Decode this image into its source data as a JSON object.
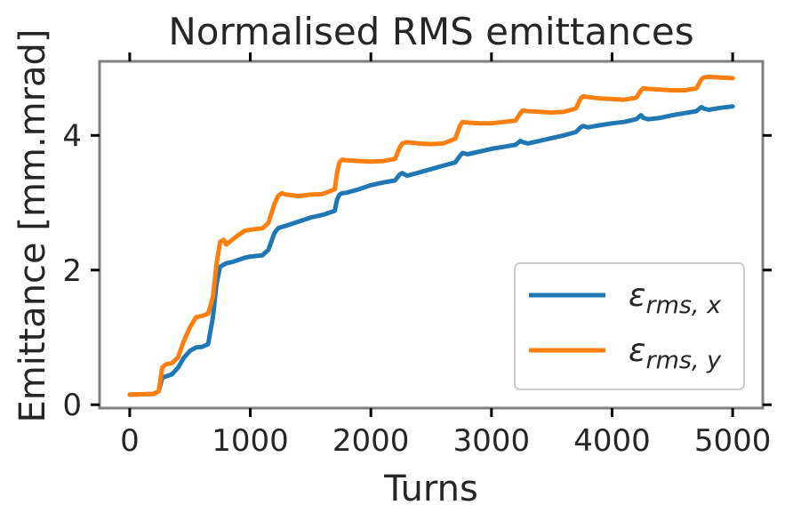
{
  "chart_data": {
    "type": "line",
    "title": "Normalised RMS emittances",
    "xlabel": "Turns",
    "ylabel": "Emittance [mm.mrad]",
    "xlim": [
      -250,
      5250
    ],
    "ylim": [
      -0.05,
      5.1
    ],
    "xticks": [
      0,
      1000,
      2000,
      3000,
      4000,
      5000
    ],
    "xtick_labels": [
      "0",
      "1000",
      "2000",
      "3000",
      "4000",
      "5000"
    ],
    "yticks": [
      0,
      2,
      4
    ],
    "ytick_labels": [
      "0",
      "2",
      "4"
    ],
    "grid": false,
    "legend_position": "lower-right",
    "series": [
      {
        "name": "rms, x",
        "legend_main": "ε",
        "legend_sub": "rms, x",
        "color": "#1f77b4",
        "x": [
          0,
          200,
          240,
          270,
          300,
          350,
          400,
          450,
          500,
          550,
          600,
          650,
          690,
          720,
          750,
          780,
          800,
          850,
          900,
          950,
          1000,
          1100,
          1150,
          1200,
          1230,
          1260,
          1300,
          1400,
          1500,
          1600,
          1700,
          1720,
          1740,
          1760,
          1800,
          1900,
          2000,
          2100,
          2200,
          2240,
          2260,
          2300,
          2400,
          2500,
          2600,
          2700,
          2740,
          2760,
          2800,
          2900,
          3000,
          3100,
          3200,
          3240,
          3260,
          3300,
          3400,
          3500,
          3600,
          3700,
          3740,
          3760,
          3800,
          3900,
          4000,
          4100,
          4200,
          4240,
          4260,
          4300,
          4400,
          4500,
          4600,
          4700,
          4740,
          4760,
          4800,
          4900,
          5000
        ],
        "y": [
          0.15,
          0.16,
          0.2,
          0.4,
          0.42,
          0.45,
          0.55,
          0.7,
          0.8,
          0.85,
          0.86,
          0.9,
          1.3,
          1.8,
          2.05,
          2.08,
          2.1,
          2.12,
          2.15,
          2.18,
          2.2,
          2.22,
          2.3,
          2.55,
          2.62,
          2.64,
          2.66,
          2.72,
          2.78,
          2.82,
          2.88,
          3.05,
          3.12,
          3.14,
          3.15,
          3.2,
          3.26,
          3.3,
          3.33,
          3.42,
          3.44,
          3.4,
          3.45,
          3.5,
          3.55,
          3.6,
          3.7,
          3.74,
          3.72,
          3.76,
          3.8,
          3.83,
          3.86,
          3.92,
          3.9,
          3.88,
          3.92,
          3.96,
          4.0,
          4.05,
          4.12,
          4.14,
          4.12,
          4.15,
          4.18,
          4.2,
          4.24,
          4.3,
          4.26,
          4.24,
          4.26,
          4.3,
          4.33,
          4.36,
          4.42,
          4.4,
          4.38,
          4.41,
          4.43
        ]
      },
      {
        "name": "rms, y",
        "legend_main": "ε",
        "legend_sub": "rms, y",
        "color": "#ff7f0e",
        "x": [
          0,
          200,
          240,
          270,
          300,
          350,
          400,
          450,
          500,
          550,
          600,
          650,
          690,
          720,
          750,
          780,
          800,
          850,
          900,
          950,
          1000,
          1100,
          1150,
          1200,
          1230,
          1260,
          1300,
          1400,
          1500,
          1600,
          1700,
          1720,
          1740,
          1760,
          1800,
          1900,
          2000,
          2100,
          2200,
          2240,
          2260,
          2300,
          2400,
          2500,
          2600,
          2700,
          2740,
          2760,
          2800,
          2900,
          3000,
          3100,
          3200,
          3240,
          3260,
          3300,
          3400,
          3500,
          3600,
          3700,
          3740,
          3760,
          3800,
          3900,
          4000,
          4100,
          4200,
          4240,
          4260,
          4300,
          4400,
          4500,
          4600,
          4700,
          4740,
          4760,
          4800,
          4900,
          5000
        ],
        "y": [
          0.15,
          0.16,
          0.2,
          0.55,
          0.6,
          0.62,
          0.7,
          0.95,
          1.15,
          1.3,
          1.32,
          1.35,
          1.6,
          2.1,
          2.42,
          2.45,
          2.38,
          2.45,
          2.52,
          2.58,
          2.6,
          2.62,
          2.7,
          2.98,
          3.1,
          3.14,
          3.12,
          3.1,
          3.12,
          3.13,
          3.2,
          3.45,
          3.6,
          3.64,
          3.63,
          3.62,
          3.61,
          3.62,
          3.65,
          3.82,
          3.88,
          3.9,
          3.88,
          3.87,
          3.88,
          3.95,
          4.15,
          4.2,
          4.19,
          4.18,
          4.18,
          4.2,
          4.22,
          4.33,
          4.37,
          4.36,
          4.35,
          4.34,
          4.35,
          4.4,
          4.55,
          4.58,
          4.57,
          4.55,
          4.54,
          4.53,
          4.56,
          4.67,
          4.7,
          4.69,
          4.68,
          4.67,
          4.67,
          4.7,
          4.83,
          4.86,
          4.87,
          4.86,
          4.85
        ]
      }
    ]
  }
}
